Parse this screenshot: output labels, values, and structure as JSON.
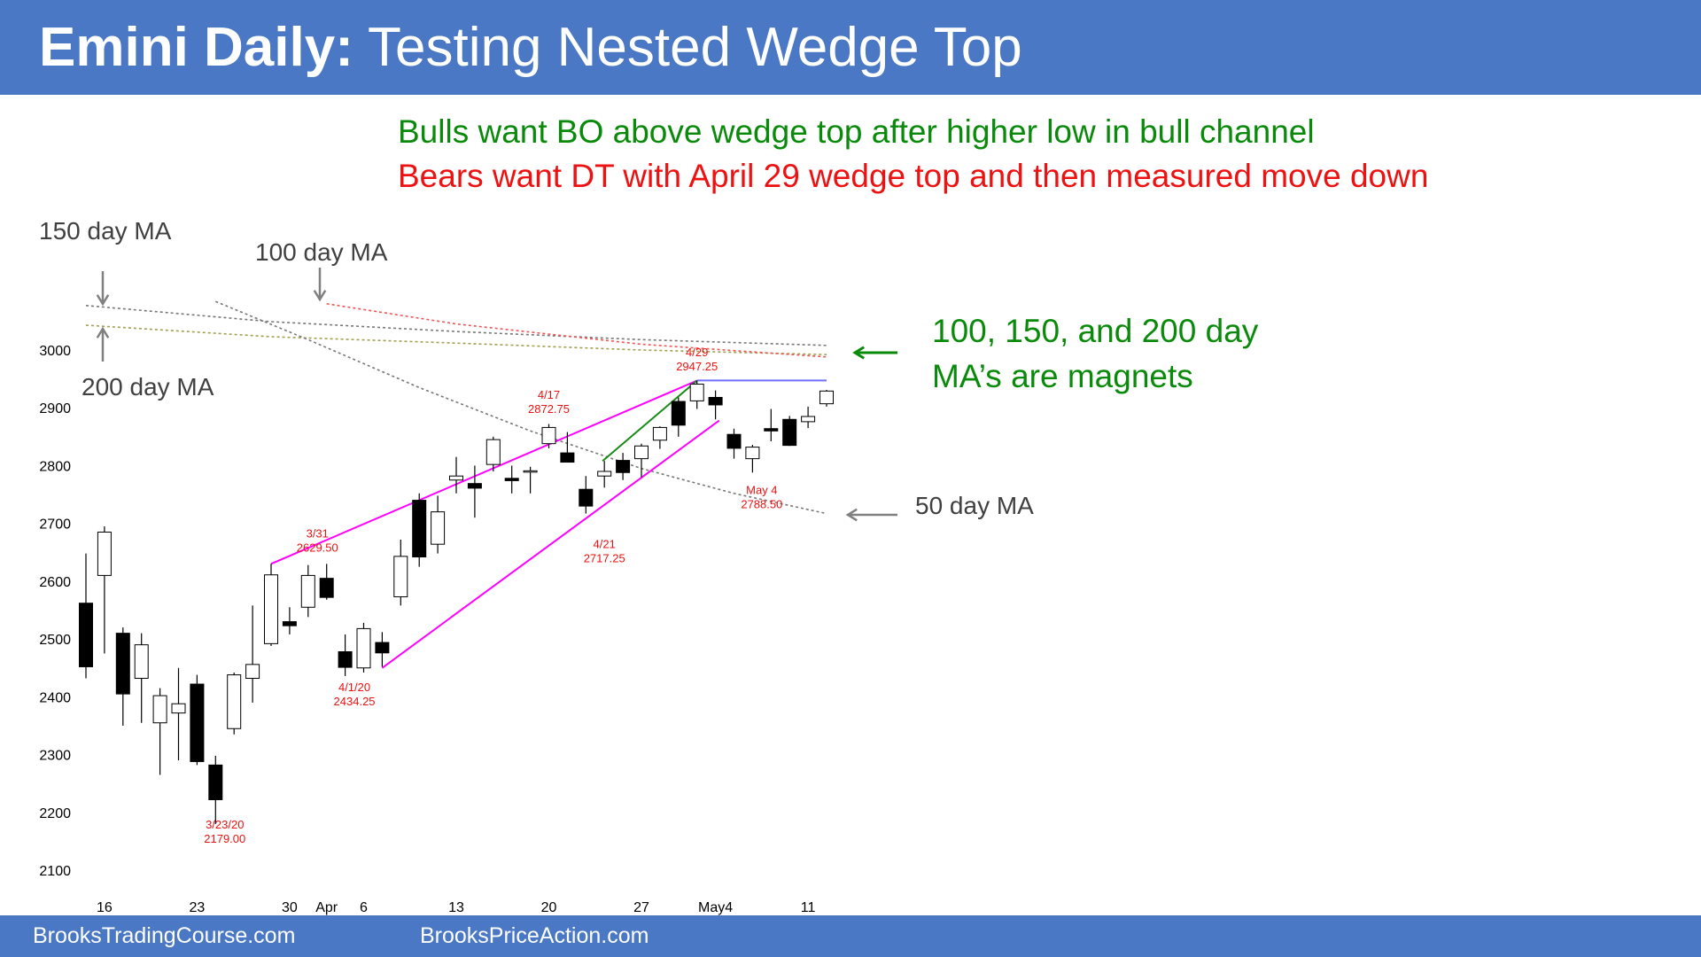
{
  "header": {
    "title_bold": "Emini Daily:",
    "title_rest": " Testing Nested Wedge Top"
  },
  "footer": {
    "link_left": "BrooksTradingCourse.com",
    "link_right": "BrooksPriceAction.com"
  },
  "notes": {
    "bulls": "Bulls want BO above wedge top after higher low in bull channel",
    "bears": "Bears want DT with April 29 wedge top and then measured move down",
    "magnet_line1": "100, 150, and 200 day",
    "magnet_line2": "MA’s are magnets",
    "ma150": "150 day MA",
    "ma100": "100 day MA",
    "ma200": "200 day MA",
    "ma50": "50 day MA"
  },
  "colors": {
    "header_bg": "#4A78C4",
    "bull_text": "#0A8A0A",
    "bear_text": "#EE1111",
    "wedge": "#FF00FF",
    "annotation": "#EE1111",
    "resistance": "#7070FF"
  },
  "chart_data": {
    "type": "candlestick",
    "ylim": [
      2100,
      3000
    ],
    "yticks": [
      2100,
      2200,
      2300,
      2400,
      2500,
      2600,
      2700,
      2800,
      2900,
      3000
    ],
    "xticks": [
      {
        "i": 1,
        "label": "16"
      },
      {
        "i": 6,
        "label": "23"
      },
      {
        "i": 11,
        "label": "30"
      },
      {
        "i": 13,
        "label": "Apr"
      },
      {
        "i": 15,
        "label": "6"
      },
      {
        "i": 20,
        "label": "13"
      },
      {
        "i": 25,
        "label": "20"
      },
      {
        "i": 30,
        "label": "27"
      },
      {
        "i": 34,
        "label": "May4"
      },
      {
        "i": 39,
        "label": "11"
      }
    ],
    "candles": [
      {
        "o": 2562,
        "h": 2648,
        "l": 2432,
        "c": 2452
      },
      {
        "o": 2610,
        "h": 2695,
        "l": 2475,
        "c": 2685
      },
      {
        "o": 2510,
        "h": 2520,
        "l": 2350,
        "c": 2405
      },
      {
        "o": 2432,
        "h": 2510,
        "l": 2355,
        "c": 2490
      },
      {
        "o": 2355,
        "h": 2415,
        "l": 2265,
        "c": 2402
      },
      {
        "o": 2372,
        "h": 2450,
        "l": 2290,
        "c": 2388
      },
      {
        "o": 2422,
        "h": 2438,
        "l": 2282,
        "c": 2288
      },
      {
        "o": 2282,
        "h": 2298,
        "l": 2180,
        "c": 2222
      },
      {
        "o": 2345,
        "h": 2442,
        "l": 2335,
        "c": 2438
      },
      {
        "o": 2432,
        "h": 2558,
        "l": 2390,
        "c": 2456
      },
      {
        "o": 2492,
        "h": 2630,
        "l": 2488,
        "c": 2611
      },
      {
        "o": 2530,
        "h": 2555,
        "l": 2508,
        "c": 2523
      },
      {
        "o": 2555,
        "h": 2628,
        "l": 2538,
        "c": 2610
      },
      {
        "o": 2605,
        "h": 2630,
        "l": 2568,
        "c": 2572
      },
      {
        "o": 2478,
        "h": 2508,
        "l": 2436,
        "c": 2451
      },
      {
        "o": 2450,
        "h": 2528,
        "l": 2442,
        "c": 2518
      },
      {
        "o": 2494,
        "h": 2512,
        "l": 2452,
        "c": 2476
      },
      {
        "o": 2573,
        "h": 2672,
        "l": 2558,
        "c": 2643
      },
      {
        "o": 2740,
        "h": 2752,
        "l": 2625,
        "c": 2642
      },
      {
        "o": 2664,
        "h": 2748,
        "l": 2648,
        "c": 2720
      },
      {
        "o": 2775,
        "h": 2815,
        "l": 2752,
        "c": 2782
      },
      {
        "o": 2769,
        "h": 2800,
        "l": 2710,
        "c": 2761
      },
      {
        "o": 2802,
        "h": 2850,
        "l": 2790,
        "c": 2845
      },
      {
        "o": 2778,
        "h": 2800,
        "l": 2752,
        "c": 2774
      },
      {
        "o": 2790,
        "h": 2798,
        "l": 2752,
        "c": 2791
      },
      {
        "o": 2838,
        "h": 2872,
        "l": 2830,
        "c": 2866
      },
      {
        "o": 2822,
        "h": 2858,
        "l": 2808,
        "c": 2806
      },
      {
        "o": 2759,
        "h": 2782,
        "l": 2717,
        "c": 2730
      },
      {
        "o": 2782,
        "h": 2808,
        "l": 2762,
        "c": 2790
      },
      {
        "o": 2809,
        "h": 2822,
        "l": 2775,
        "c": 2788
      },
      {
        "o": 2812,
        "h": 2838,
        "l": 2780,
        "c": 2834
      },
      {
        "o": 2844,
        "h": 2868,
        "l": 2829,
        "c": 2866
      },
      {
        "o": 2911,
        "h": 2918,
        "l": 2850,
        "c": 2870
      },
      {
        "o": 2912,
        "h": 2947,
        "l": 2898,
        "c": 2941
      },
      {
        "o": 2918,
        "h": 2930,
        "l": 2880,
        "c": 2905
      },
      {
        "o": 2854,
        "h": 2864,
        "l": 2812,
        "c": 2830
      },
      {
        "o": 2812,
        "h": 2836,
        "l": 2788,
        "c": 2832
      },
      {
        "o": 2864,
        "h": 2898,
        "l": 2842,
        "c": 2860
      },
      {
        "o": 2880,
        "h": 2886,
        "l": 2834,
        "c": 2835
      },
      {
        "o": 2876,
        "h": 2902,
        "l": 2865,
        "c": 2885
      },
      {
        "o": 2907,
        "h": 2931,
        "l": 2902,
        "c": 2929
      }
    ],
    "moving_averages": [
      {
        "name": "150 day MA",
        "color": "#777777",
        "points": [
          [
            0,
            3077
          ],
          [
            10,
            3049
          ],
          [
            20,
            3032
          ],
          [
            30,
            3018
          ],
          [
            40,
            3008
          ]
        ]
      },
      {
        "name": "200 day MA",
        "color": "#A0A050",
        "points": [
          [
            0,
            3043
          ],
          [
            10,
            3023
          ],
          [
            20,
            3012
          ],
          [
            30,
            3000
          ],
          [
            40,
            2992
          ]
        ]
      },
      {
        "name": "100 day MA",
        "color": "#EE5555",
        "points": [
          [
            13,
            3080
          ],
          [
            20,
            3045
          ],
          [
            30,
            3010
          ],
          [
            40,
            2988
          ]
        ]
      },
      {
        "name": "50 day MA",
        "color": "#777777",
        "points": [
          [
            7,
            3084
          ],
          [
            12,
            3018
          ],
          [
            18,
            2935
          ],
          [
            24,
            2860
          ],
          [
            30,
            2795
          ],
          [
            35,
            2752
          ],
          [
            40,
            2717
          ]
        ]
      }
    ],
    "wedges": [
      {
        "color": "#FF00FF",
        "points": [
          [
            10,
            2630
          ],
          [
            33,
            2947
          ]
        ]
      },
      {
        "color": "#FF00FF",
        "points": [
          [
            16,
            2450
          ],
          [
            34.2,
            2878
          ]
        ]
      },
      {
        "color": "#1A8A1A",
        "points": [
          [
            27.9,
            2808
          ],
          [
            33,
            2947
          ]
        ]
      }
    ],
    "resistance_line": {
      "value": 2947.25,
      "from": 33,
      "to": 40,
      "color": "#7070FF"
    },
    "annotations": [
      {
        "i": 7.5,
        "price": 2172,
        "text": [
          "3/23/20",
          "2179.00"
        ]
      },
      {
        "i": 14.5,
        "price": 2410,
        "text": [
          "4/1/20",
          "2434.25"
        ]
      },
      {
        "i": 12.5,
        "price": 2676,
        "text": [
          "3/31",
          "2629.50"
        ]
      },
      {
        "i": 25,
        "price": 2916,
        "text": [
          "4/17",
          "2872.75"
        ]
      },
      {
        "i": 28,
        "price": 2657,
        "text": [
          "4/21",
          "2717.25"
        ]
      },
      {
        "i": 33,
        "price": 2989,
        "text": [
          "4/29",
          "2947.25"
        ]
      },
      {
        "i": 36.5,
        "price": 2751,
        "text": [
          "May 4",
          "2788.50"
        ]
      }
    ]
  }
}
